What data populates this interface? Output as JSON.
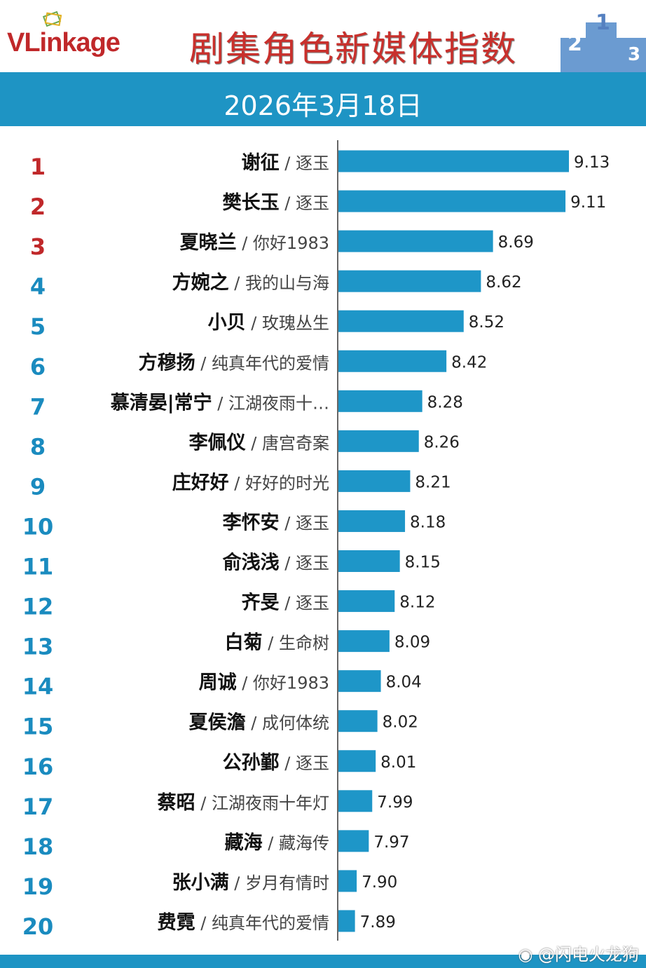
{
  "header": {
    "logo": "VLinkage",
    "title": "剧集角色新媒体指数",
    "date": "2026年3月18日",
    "podium_digits": [
      "2",
      "1",
      "3"
    ]
  },
  "watermark": "@闪电火龙狗",
  "colors": {
    "bar": "#1e96c8",
    "rank_top3": "#c0282a",
    "rank_other": "#1a8bbf",
    "band": "#1e94c4"
  },
  "chart_data": {
    "type": "bar",
    "orientation": "horizontal",
    "xlim": [
      7.79,
      9.2
    ],
    "grid": false,
    "ranks": [
      1,
      2,
      3,
      4,
      5,
      6,
      7,
      8,
      9,
      10,
      11,
      12,
      13,
      14,
      15,
      16,
      17,
      18,
      19,
      20
    ],
    "characters": [
      "谢征",
      "樊长玉",
      "夏晓兰",
      "方婉之",
      "小贝",
      "方穆扬",
      "慕清晏|常宁",
      "李佩仪",
      "庄好好",
      "李怀安",
      "俞浅浅",
      "齐旻",
      "白菊",
      "周诚",
      "夏侯澹",
      "公孙鄞",
      "蔡昭",
      "藏海",
      "张小满",
      "费霓"
    ],
    "dramas": [
      "逐玉",
      "逐玉",
      "你好1983",
      "我的山与海",
      "玫瑰丛生",
      "纯真年代的爱情",
      "江湖夜雨十…",
      "唐宫奇案",
      "好好的时光",
      "逐玉",
      "逐玉",
      "逐玉",
      "生命树",
      "你好1983",
      "成何体统",
      "逐玉",
      "江湖夜雨十年灯",
      "藏海传",
      "岁月有情时",
      "纯真年代的爱情"
    ],
    "values": [
      9.13,
      9.11,
      8.69,
      8.62,
      8.52,
      8.42,
      8.28,
      8.26,
      8.21,
      8.18,
      8.15,
      8.12,
      8.09,
      8.04,
      8.02,
      8.01,
      7.99,
      7.97,
      7.9,
      7.89
    ]
  }
}
